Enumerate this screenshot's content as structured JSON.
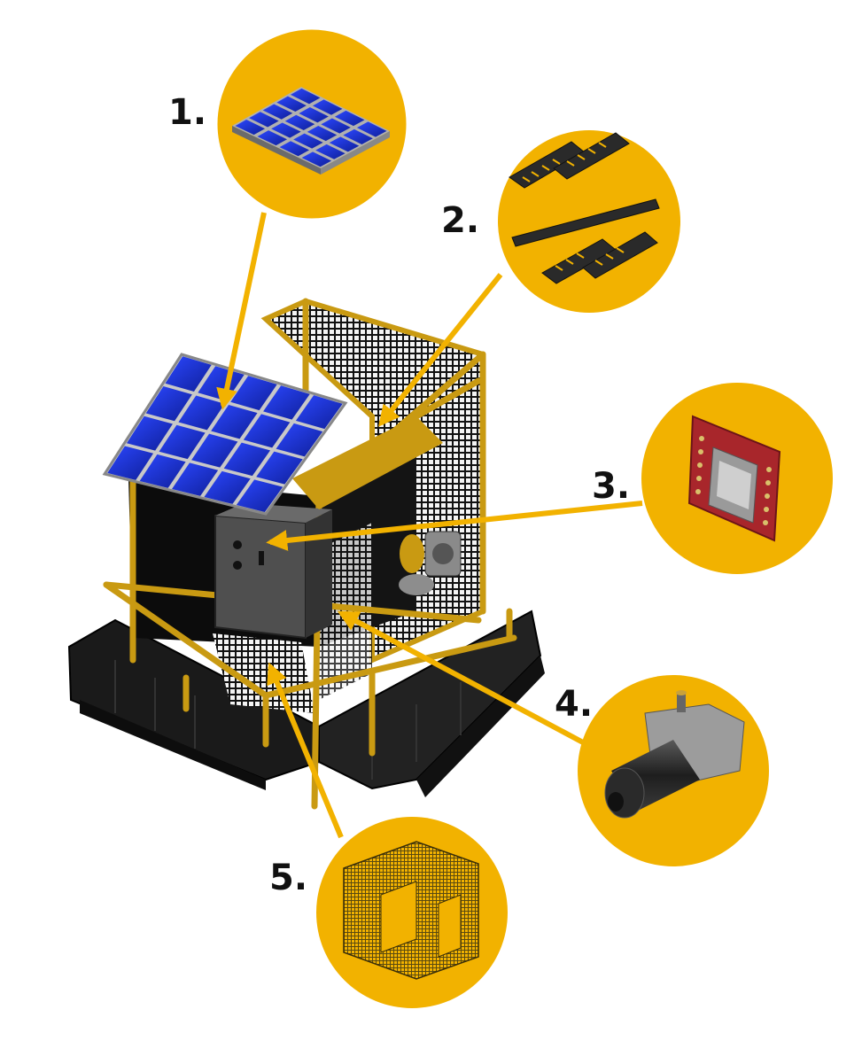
{
  "colors": {
    "accent": "#F2B200",
    "frame": "#C99A12",
    "solar_cell": "#1F3BE6",
    "float": "#1c1c1c",
    "enclosure": "#4a4a4a",
    "pcb": "#A8262B"
  },
  "callouts": [
    {
      "label": "1.",
      "component_icon": "solar-panel-icon"
    },
    {
      "label": "2.",
      "component_icon": "brush-rollers-icon"
    },
    {
      "label": "3.",
      "component_icon": "sd-card-module-icon"
    },
    {
      "label": "4.",
      "component_icon": "gear-motor-icon"
    },
    {
      "label": "5.",
      "component_icon": "mesh-cage-icon"
    }
  ]
}
